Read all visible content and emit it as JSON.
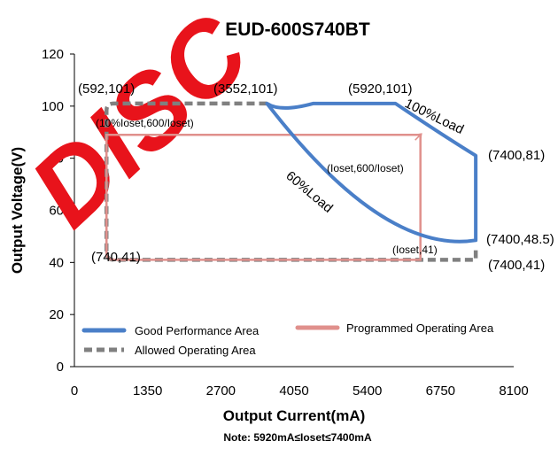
{
  "chart_data": {
    "type": "line",
    "title": "EUD-600S740BT",
    "xlabel": "Output Current(mA)",
    "ylabel": "Output Voltage(V)",
    "xlim": [
      0,
      8100
    ],
    "ylim": [
      0,
      120
    ],
    "xticks": [
      0,
      1350,
      2700,
      4050,
      5400,
      6750,
      8100
    ],
    "yticks": [
      0,
      20,
      40,
      60,
      80,
      100,
      120
    ],
    "grid": false,
    "legend_position": "bottom-left inside plot",
    "series": [
      {
        "name": "Good Performance Area",
        "color": "#4a7fc8",
        "line_style": "solid",
        "points": [
          [
            3552,
            101
          ],
          [
            5920,
            101
          ],
          [
            7400,
            81
          ],
          [
            7400,
            48.5
          ],
          [
            3552,
            101
          ]
        ]
      },
      {
        "name": "Programmed Operating Area",
        "color": "#e0908c",
        "line_style": "solid",
        "points": [
          [
            592,
            89
          ],
          [
            6380,
            89
          ],
          [
            6380,
            41
          ],
          [
            740,
            41
          ],
          [
            592,
            89
          ]
        ]
      },
      {
        "name": "Allowed Operating Area",
        "color": "#808080",
        "line_style": "dashed",
        "points": [
          [
            592,
            101
          ],
          [
            3552,
            101
          ],
          [
            7400,
            41
          ],
          [
            740,
            41
          ],
          [
            592,
            101
          ]
        ]
      }
    ],
    "annotations": [
      {
        "text": "(592,101)",
        "x": 592,
        "y": 101
      },
      {
        "text": "(3552,101)",
        "x": 3552,
        "y": 101
      },
      {
        "text": "(5920,101)",
        "x": 5920,
        "y": 101
      },
      {
        "text": "100%Load",
        "x": 6700,
        "y": 94
      },
      {
        "text": "(7400,81)",
        "x": 7400,
        "y": 81
      },
      {
        "text": "(10%Ioset,600/Ioset)",
        "x": 592,
        "y": 89
      },
      {
        "text": "(Ioset,600/Ioset)",
        "x": 6380,
        "y": 89
      },
      {
        "text": "60%Load",
        "x": 4500,
        "y": 68
      },
      {
        "text": "(7400,48.5)",
        "x": 7400,
        "y": 48.5
      },
      {
        "text": "(Ioset,41)",
        "x": 6380,
        "y": 41
      },
      {
        "text": "(7400,41)",
        "x": 7400,
        "y": 41
      },
      {
        "text": "(740,41)",
        "x": 740,
        "y": 41
      }
    ],
    "note": "Note:  5920mA≤Ioset≤7400mA",
    "watermark": "DISC"
  }
}
